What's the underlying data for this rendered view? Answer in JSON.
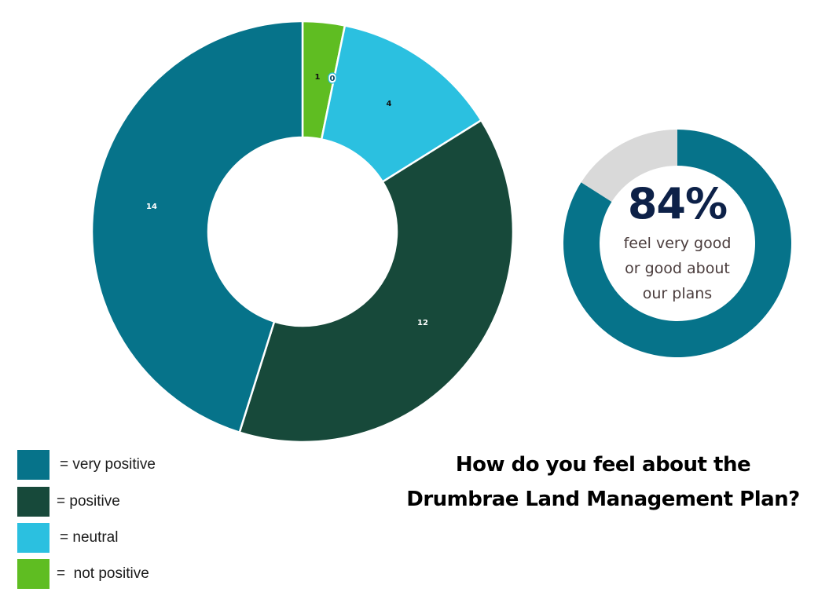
{
  "chart_data": [
    {
      "type": "pie",
      "variant": "donut",
      "title": "How do you feel about the Drumbrae Land Management Plan?",
      "categories": [
        "not positive",
        "(zero slice)",
        "neutral",
        "positive",
        "very positive"
      ],
      "values": [
        1,
        0,
        4,
        12,
        14
      ],
      "data_labels": [
        "1",
        "0",
        "4",
        "12",
        "14"
      ],
      "colors": [
        "#5fbd22",
        "#2bc0e0",
        "#2bc0e0",
        "#17493a",
        "#06738a"
      ],
      "start_angle": "top (12 o'clock), clockwise",
      "legend": [
        {
          "label": "= very positive",
          "color": "#06738a"
        },
        {
          "label": "= positive",
          "color": "#17493a"
        },
        {
          "label": "= neutral",
          "color": "#2bc0e0"
        },
        {
          "label": "=  not positive",
          "color": "#5fbd22"
        }
      ],
      "legend_position": "bottom-left"
    },
    {
      "type": "pie",
      "variant": "donut-kpi",
      "categories": [
        "very good or good",
        "other"
      ],
      "values": [
        84,
        16
      ],
      "colors": [
        "#06738a",
        "#d9d9d9"
      ],
      "center_value": "84%",
      "center_caption": [
        "feel very good",
        "or good about",
        "our plans"
      ]
    }
  ],
  "main": {
    "labels": {
      "not_positive": "1",
      "zero": "0",
      "neutral": "4",
      "positive": "12",
      "very_positive": "14"
    }
  },
  "kpi": {
    "value": "84%",
    "line1": "feel very good",
    "line2": "or good about",
    "line3": "our plans"
  },
  "legend": {
    "items": [
      {
        "label": "= very positive",
        "color": "#06738a"
      },
      {
        "label": "= positive",
        "color": "#17493a"
      },
      {
        "label": "= neutral",
        "color": "#2bc0e0"
      },
      {
        "label": "=  not positive",
        "color": "#5fbd22"
      }
    ]
  },
  "title": {
    "line1": "How do you feel about the",
    "line2": "Drumbrae Land Management Plan?"
  }
}
